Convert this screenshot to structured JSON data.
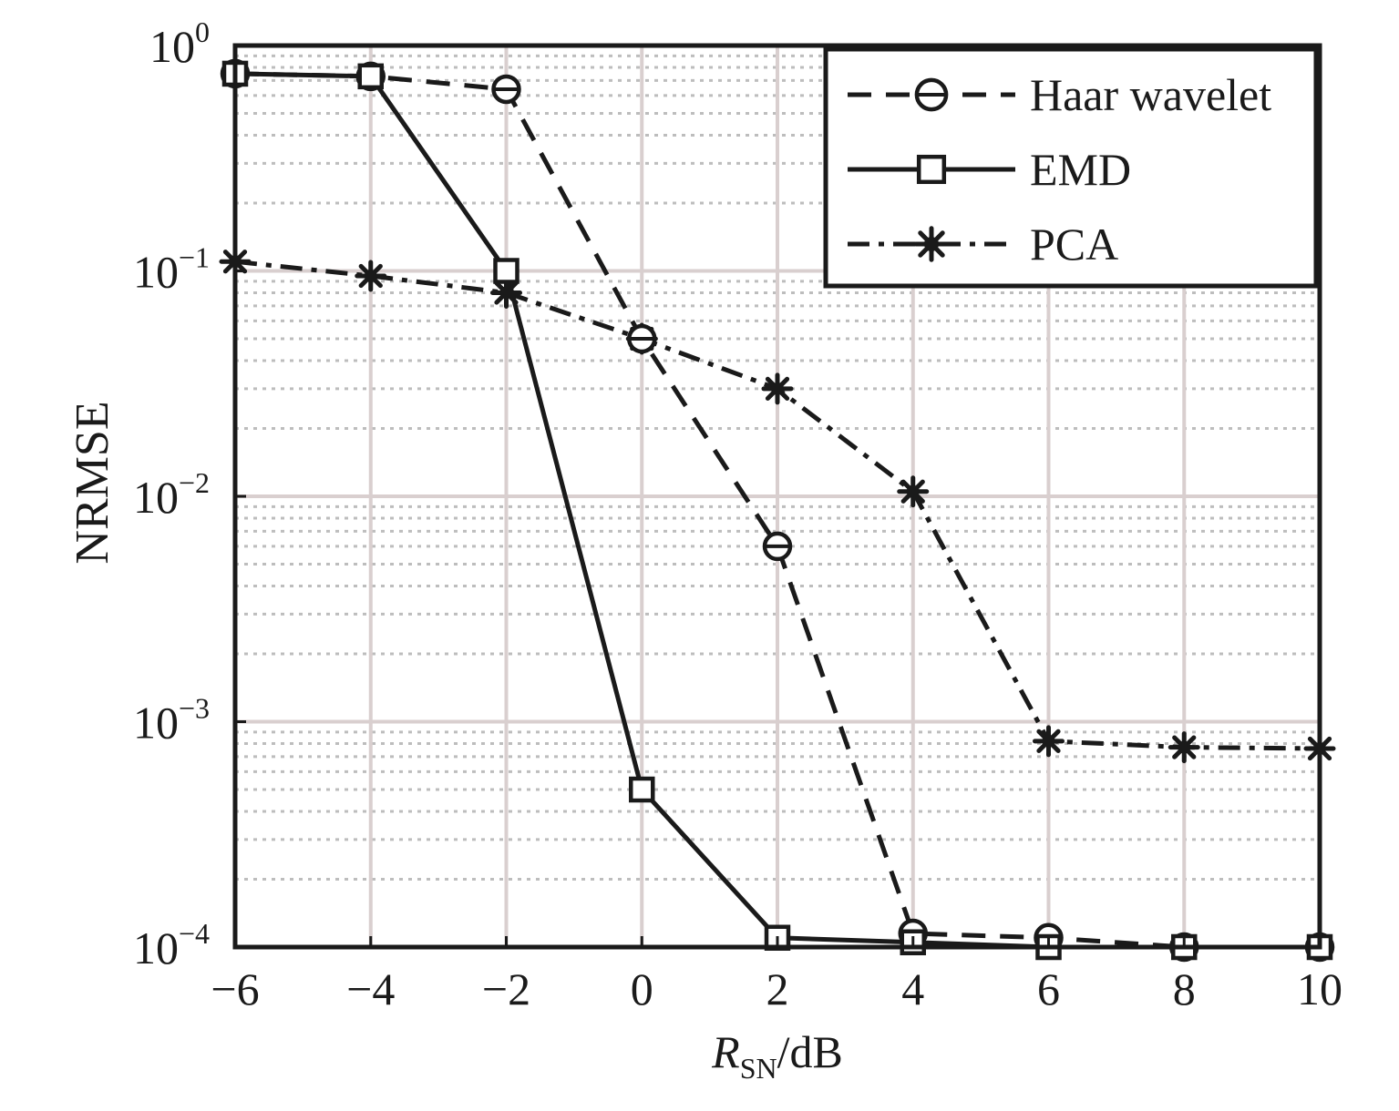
{
  "chart_data": {
    "type": "line",
    "title": "",
    "xlabel": {
      "main": "R",
      "sub": "SN",
      "unit": "/dB"
    },
    "ylabel": "NRMSE",
    "x": [
      -6,
      -4,
      -2,
      0,
      2,
      4,
      6,
      8,
      10
    ],
    "x_tick_labels": [
      "−6",
      "−4",
      "−2",
      "0",
      "2",
      "4",
      "6",
      "8",
      "10"
    ],
    "xlim": [
      -6,
      10
    ],
    "ylim": [
      0.0001,
      1
    ],
    "yscale": "log",
    "y_ticks": [
      {
        "value": 1,
        "base": "10",
        "exp": "0"
      },
      {
        "value": 0.1,
        "base": "10",
        "exp": "−1"
      },
      {
        "value": 0.01,
        "base": "10",
        "exp": "−2"
      },
      {
        "value": 0.001,
        "base": "10",
        "exp": "−3"
      },
      {
        "value": 0.0001,
        "base": "10",
        "exp": "−4"
      }
    ],
    "grid": "major and minor (dotted minor)",
    "legend_position": "top-right",
    "series": [
      {
        "name": "Haar wavelet",
        "line_style": "dashed",
        "marker": "circle-with-bar",
        "color": "#1a1a1a",
        "values": [
          0.75,
          0.73,
          0.64,
          0.05,
          0.006,
          0.000115,
          0.00011,
          0.0001,
          0.0001
        ]
      },
      {
        "name": "EMD",
        "line_style": "solid",
        "marker": "square",
        "color": "#1a1a1a",
        "values": [
          0.75,
          0.73,
          0.1,
          0.0005,
          0.00011,
          0.000105,
          0.0001,
          0.0001,
          0.0001
        ]
      },
      {
        "name": "PCA",
        "line_style": "dash-dot",
        "marker": "asterisk-star",
        "color": "#1a1a1a",
        "values": [
          0.11,
          0.095,
          0.08,
          0.05,
          0.03,
          0.0105,
          0.00082,
          0.00077,
          0.00076
        ]
      }
    ]
  }
}
